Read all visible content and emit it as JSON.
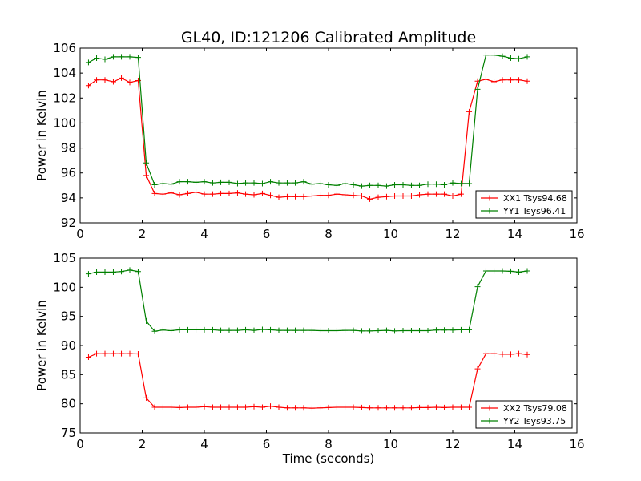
{
  "chart_data": {
    "title": "GL40, ID:121206 Calibrated Amplitude",
    "charts": [
      {
        "type": "line",
        "ylabel": "Power in Kelvin",
        "xlabel": "",
        "xlim": [
          0,
          16
        ],
        "ylim": [
          92,
          106
        ],
        "xticks": [
          0,
          2,
          4,
          6,
          8,
          10,
          12,
          14,
          16
        ],
        "yticks": [
          92,
          94,
          96,
          98,
          100,
          102,
          104,
          106
        ],
        "legend_position": "lower-right",
        "series": [
          {
            "name": "XX1 Tsys94.68",
            "color": "#ff0000",
            "x": [
              0.27,
              0.53,
              0.8,
              1.07,
              1.33,
              1.6,
              1.87,
              2.13,
              2.4,
              2.67,
              2.93,
              3.2,
              3.47,
              3.73,
              4.0,
              4.27,
              4.53,
              4.8,
              5.07,
              5.33,
              5.6,
              5.87,
              6.13,
              6.4,
              6.67,
              6.93,
              7.2,
              7.47,
              7.73,
              8.0,
              8.27,
              8.53,
              8.8,
              9.07,
              9.33,
              9.6,
              9.87,
              10.13,
              10.4,
              10.67,
              10.93,
              11.2,
              11.47,
              11.73,
              12.0,
              12.27,
              12.53,
              12.8,
              13.07,
              13.33,
              13.6,
              13.87,
              14.13,
              14.4
            ],
            "values": [
              103.0,
              103.45,
              103.45,
              103.3,
              103.6,
              103.25,
              103.4,
              95.8,
              94.35,
              94.3,
              94.4,
              94.25,
              94.35,
              94.45,
              94.3,
              94.3,
              94.35,
              94.35,
              94.4,
              94.3,
              94.25,
              94.35,
              94.2,
              94.05,
              94.1,
              94.1,
              94.1,
              94.15,
              94.2,
              94.2,
              94.3,
              94.25,
              94.2,
              94.15,
              93.9,
              94.05,
              94.1,
              94.15,
              94.15,
              94.15,
              94.25,
              94.3,
              94.3,
              94.3,
              94.15,
              94.3,
              100.9,
              103.35,
              103.5,
              103.3,
              103.45,
              103.45,
              103.45,
              103.35
            ]
          },
          {
            "name": "YY1 Tsys96.41",
            "color": "#008000",
            "x": [
              0.27,
              0.53,
              0.8,
              1.07,
              1.33,
              1.6,
              1.87,
              2.13,
              2.4,
              2.67,
              2.93,
              3.2,
              3.47,
              3.73,
              4.0,
              4.27,
              4.53,
              4.8,
              5.07,
              5.33,
              5.6,
              5.87,
              6.13,
              6.4,
              6.67,
              6.93,
              7.2,
              7.47,
              7.73,
              8.0,
              8.27,
              8.53,
              8.8,
              9.07,
              9.33,
              9.6,
              9.87,
              10.13,
              10.4,
              10.67,
              10.93,
              11.2,
              11.47,
              11.73,
              12.0,
              12.27,
              12.53,
              12.8,
              13.07,
              13.33,
              13.6,
              13.87,
              14.13,
              14.4
            ],
            "values": [
              104.85,
              105.2,
              105.1,
              105.3,
              105.3,
              105.3,
              105.25,
              96.8,
              95.05,
              95.15,
              95.1,
              95.3,
              95.3,
              95.25,
              95.3,
              95.2,
              95.25,
              95.25,
              95.15,
              95.2,
              95.2,
              95.15,
              95.3,
              95.2,
              95.2,
              95.2,
              95.3,
              95.1,
              95.15,
              95.05,
              95.0,
              95.15,
              95.05,
              94.95,
              95.0,
              95.0,
              94.95,
              95.05,
              95.05,
              95.0,
              95.0,
              95.1,
              95.1,
              95.05,
              95.2,
              95.15,
              95.15,
              102.7,
              105.45,
              105.45,
              105.35,
              105.2,
              105.15,
              105.3
            ]
          }
        ]
      },
      {
        "type": "line",
        "ylabel": "Power in Kelvin",
        "xlabel": "Time (seconds)",
        "xlim": [
          0,
          16
        ],
        "ylim": [
          75,
          105
        ],
        "xticks": [
          0,
          2,
          4,
          6,
          8,
          10,
          12,
          14,
          16
        ],
        "yticks": [
          75,
          80,
          85,
          90,
          95,
          100,
          105
        ],
        "legend_position": "lower-right",
        "series": [
          {
            "name": "XX2 Tsys79.08",
            "color": "#ff0000",
            "x": [
              0.27,
              0.53,
              0.8,
              1.07,
              1.33,
              1.6,
              1.87,
              2.13,
              2.4,
              2.67,
              2.93,
              3.2,
              3.47,
              3.73,
              4.0,
              4.27,
              4.53,
              4.8,
              5.07,
              5.33,
              5.6,
              5.87,
              6.13,
              6.4,
              6.67,
              6.93,
              7.2,
              7.47,
              7.73,
              8.0,
              8.27,
              8.53,
              8.8,
              9.07,
              9.33,
              9.6,
              9.87,
              10.13,
              10.4,
              10.67,
              10.93,
              11.2,
              11.47,
              11.73,
              12.0,
              12.27,
              12.53,
              12.8,
              13.07,
              13.33,
              13.6,
              13.87,
              14.13,
              14.4
            ],
            "values": [
              88.0,
              88.6,
              88.6,
              88.6,
              88.6,
              88.6,
              88.55,
              81.0,
              79.4,
              79.4,
              79.4,
              79.35,
              79.4,
              79.4,
              79.5,
              79.4,
              79.4,
              79.4,
              79.4,
              79.4,
              79.5,
              79.4,
              79.6,
              79.4,
              79.3,
              79.3,
              79.3,
              79.25,
              79.3,
              79.35,
              79.4,
              79.4,
              79.4,
              79.35,
              79.3,
              79.3,
              79.3,
              79.3,
              79.3,
              79.3,
              79.35,
              79.35,
              79.4,
              79.35,
              79.4,
              79.4,
              79.4,
              86.0,
              88.6,
              88.6,
              88.5,
              88.5,
              88.6,
              88.45
            ]
          },
          {
            "name": "YY2 Tsys93.75",
            "color": "#008000",
            "x": [
              0.27,
              0.53,
              0.8,
              1.07,
              1.33,
              1.6,
              1.87,
              2.13,
              2.4,
              2.67,
              2.93,
              3.2,
              3.47,
              3.73,
              4.0,
              4.27,
              4.53,
              4.8,
              5.07,
              5.33,
              5.6,
              5.87,
              6.13,
              6.4,
              6.67,
              6.93,
              7.2,
              7.47,
              7.73,
              8.0,
              8.27,
              8.53,
              8.8,
              9.07,
              9.33,
              9.6,
              9.87,
              10.13,
              10.4,
              10.67,
              10.93,
              11.2,
              11.47,
              11.73,
              12.0,
              12.27,
              12.53,
              12.8,
              13.07,
              13.33,
              13.6,
              13.87,
              14.13,
              14.4
            ],
            "values": [
              102.3,
              102.6,
              102.6,
              102.6,
              102.7,
              102.95,
              102.7,
              94.2,
              92.45,
              92.65,
              92.55,
              92.7,
              92.7,
              92.7,
              92.7,
              92.7,
              92.6,
              92.6,
              92.6,
              92.7,
              92.6,
              92.75,
              92.7,
              92.6,
              92.6,
              92.6,
              92.6,
              92.6,
              92.55,
              92.55,
              92.55,
              92.6,
              92.6,
              92.5,
              92.5,
              92.55,
              92.6,
              92.5,
              92.55,
              92.55,
              92.55,
              92.55,
              92.65,
              92.65,
              92.65,
              92.7,
              92.7,
              100.1,
              102.8,
              102.8,
              102.8,
              102.75,
              102.6,
              102.8
            ]
          }
        ]
      }
    ]
  }
}
